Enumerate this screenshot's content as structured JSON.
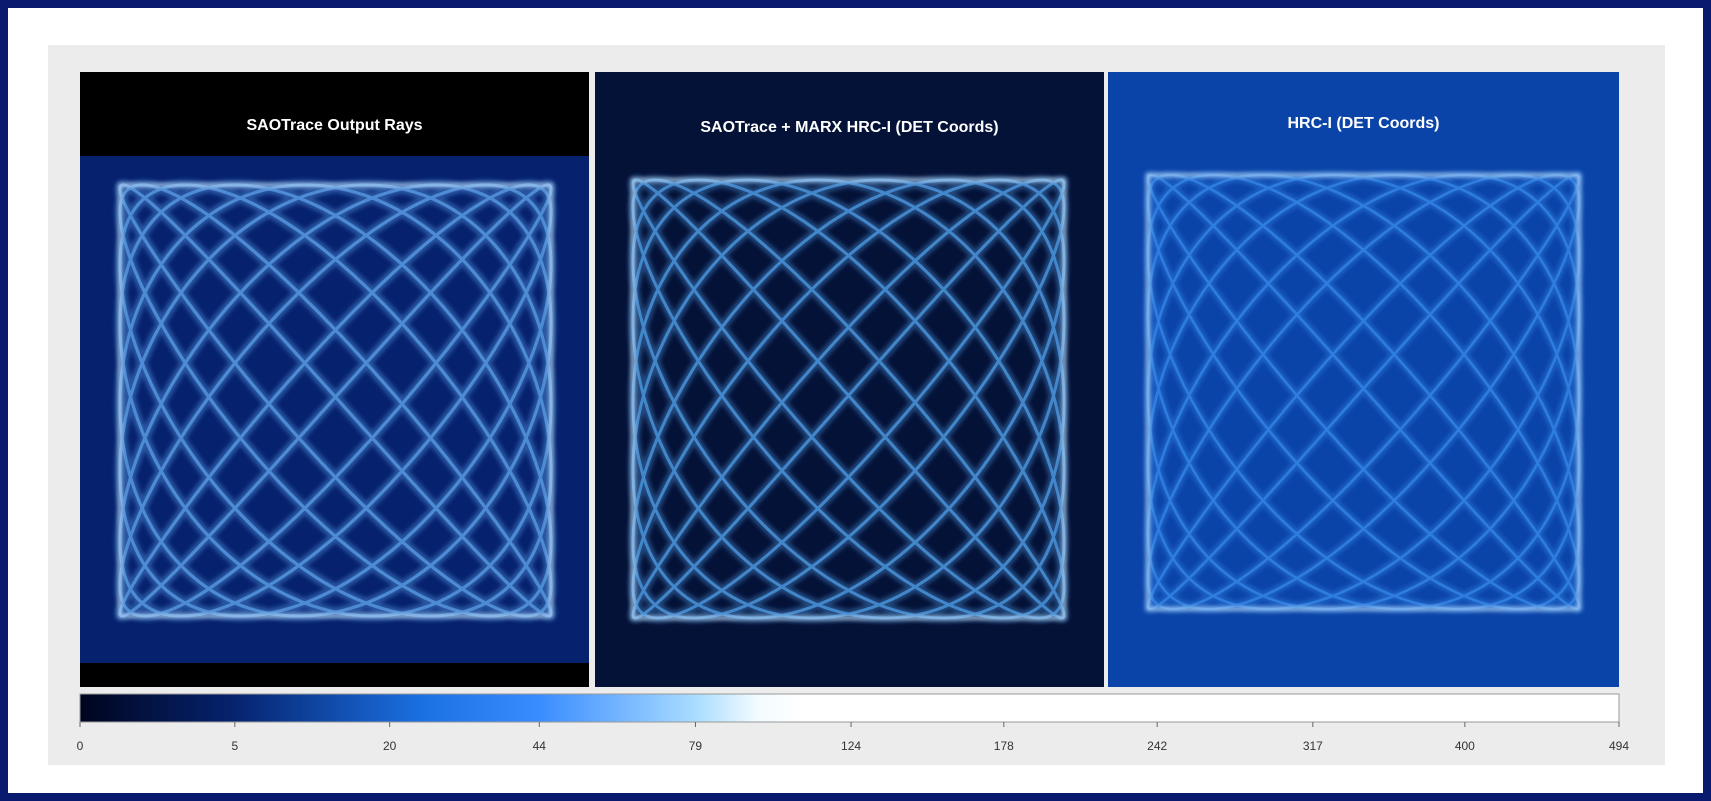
{
  "panels": [
    {
      "title": "SAOTrace Output Rays"
    },
    {
      "title": "SAOTrace + MARX HRC-I (DET Coords)"
    },
    {
      "title": "HRC-I (DET Coords)"
    }
  ],
  "colorbar": {
    "scale": "sqrt",
    "lim": [
      0,
      494
    ],
    "ticks": [
      0,
      5,
      20,
      44,
      79,
      124,
      178,
      242,
      317,
      400,
      494
    ]
  }
}
